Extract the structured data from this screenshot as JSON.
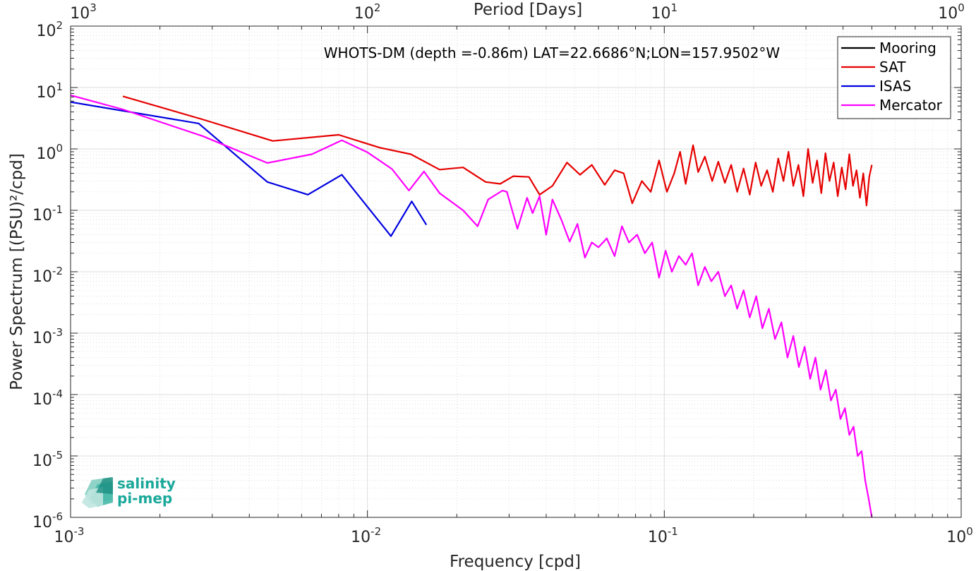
{
  "chart_data": {
    "type": "line",
    "title": "WHOTS-DM (depth =-0.86m) LAT=22.6686°N;LON=157.9502°W",
    "xlabel": "Frequency [cpd]",
    "ylabel": "Power Spectrum [(PSU)²/cpd]",
    "x2label": "Period [Days]",
    "xscale": "log",
    "yscale": "log",
    "xlim": [
      0.001,
      1
    ],
    "ylim": [
      1e-06,
      100
    ],
    "grid": true,
    "legend_placement": "top-right",
    "x_ticks": [
      {
        "base": "10",
        "exp": "-3"
      },
      {
        "base": "10",
        "exp": "-2"
      },
      {
        "base": "10",
        "exp": "-1"
      },
      {
        "base": "10",
        "exp": "0"
      }
    ],
    "x2_ticks": [
      {
        "base": "10",
        "exp": "3"
      },
      {
        "base": "10",
        "exp": "2"
      },
      {
        "base": "10",
        "exp": "1"
      },
      {
        "base": "10",
        "exp": "0"
      }
    ],
    "y_ticks": [
      {
        "base": "10",
        "exp": "-6"
      },
      {
        "base": "10",
        "exp": "-5"
      },
      {
        "base": "10",
        "exp": "-4"
      },
      {
        "base": "10",
        "exp": "-3"
      },
      {
        "base": "10",
        "exp": "-2"
      },
      {
        "base": "10",
        "exp": "-1"
      },
      {
        "base": "10",
        "exp": "0"
      },
      {
        "base": "10",
        "exp": "1"
      },
      {
        "base": "10",
        "exp": "2"
      }
    ],
    "series": [
      {
        "name": "Mooring",
        "color": "#000000",
        "x": [],
        "y": []
      },
      {
        "name": "SAT",
        "color": "#e60000",
        "x": [
          0.0015,
          0.0028,
          0.0048,
          0.008,
          0.011,
          0.014,
          0.0175,
          0.021,
          0.025,
          0.028,
          0.031,
          0.035,
          0.038,
          0.042,
          0.047,
          0.052,
          0.057,
          0.063,
          0.068,
          0.073,
          0.078,
          0.084,
          0.09,
          0.096,
          0.102,
          0.108,
          0.113,
          0.118,
          0.125,
          0.13,
          0.137,
          0.145,
          0.152,
          0.16,
          0.168,
          0.176,
          0.185,
          0.194,
          0.203,
          0.212,
          0.222,
          0.232,
          0.242,
          0.252,
          0.262,
          0.272,
          0.283,
          0.294,
          0.305,
          0.316,
          0.327,
          0.338,
          0.349,
          0.36,
          0.372,
          0.384,
          0.396,
          0.408,
          0.42,
          0.432,
          0.444,
          0.456,
          0.468,
          0.48,
          0.49,
          0.5
        ],
        "y": [
          7.2,
          3.0,
          1.35,
          1.7,
          1.05,
          0.82,
          0.46,
          0.5,
          0.29,
          0.27,
          0.36,
          0.35,
          0.18,
          0.25,
          0.6,
          0.38,
          0.55,
          0.26,
          0.45,
          0.4,
          0.13,
          0.3,
          0.2,
          0.65,
          0.2,
          0.4,
          0.9,
          0.27,
          1.15,
          0.42,
          0.75,
          0.3,
          0.62,
          0.28,
          0.55,
          0.2,
          0.48,
          0.18,
          0.6,
          0.25,
          0.45,
          0.2,
          0.7,
          0.3,
          0.9,
          0.25,
          0.55,
          0.17,
          1.0,
          0.28,
          0.65,
          0.19,
          0.85,
          0.3,
          0.6,
          0.17,
          0.5,
          0.22,
          0.82,
          0.25,
          0.45,
          0.16,
          0.4,
          0.12,
          0.35,
          0.55
        ]
      },
      {
        "name": "ISAS",
        "color": "#0000e0",
        "x": [
          0.001,
          0.0027,
          0.0046,
          0.0063,
          0.0082,
          0.012,
          0.0141,
          0.0158
        ],
        "y": [
          5.8,
          2.6,
          0.29,
          0.18,
          0.38,
          0.038,
          0.14,
          0.058
        ]
      },
      {
        "name": "Mercator",
        "color": "#ff00ff",
        "x": [
          0.001,
          0.0015,
          0.0028,
          0.0046,
          0.0065,
          0.0082,
          0.01,
          0.0121,
          0.0138,
          0.0155,
          0.0175,
          0.021,
          0.0235,
          0.0255,
          0.0285,
          0.0295,
          0.032,
          0.0345,
          0.036,
          0.038,
          0.04,
          0.042,
          0.045,
          0.048,
          0.051,
          0.054,
          0.057,
          0.06,
          0.064,
          0.068,
          0.072,
          0.076,
          0.081,
          0.086,
          0.091,
          0.096,
          0.101,
          0.106,
          0.112,
          0.118,
          0.124,
          0.13,
          0.137,
          0.144,
          0.152,
          0.16,
          0.168,
          0.176,
          0.185,
          0.194,
          0.204,
          0.214,
          0.225,
          0.236,
          0.248,
          0.26,
          0.272,
          0.284,
          0.297,
          0.31,
          0.323,
          0.336,
          0.35,
          0.364,
          0.378,
          0.392,
          0.406,
          0.42,
          0.434,
          0.448,
          0.462,
          0.475,
          0.488,
          0.5
        ],
        "y": [
          7.5,
          4.4,
          1.6,
          0.59,
          0.82,
          1.38,
          0.88,
          0.47,
          0.21,
          0.43,
          0.19,
          0.1,
          0.055,
          0.15,
          0.21,
          0.2,
          0.05,
          0.16,
          0.09,
          0.17,
          0.04,
          0.15,
          0.07,
          0.031,
          0.06,
          0.017,
          0.03,
          0.025,
          0.035,
          0.018,
          0.055,
          0.03,
          0.04,
          0.02,
          0.03,
          0.008,
          0.022,
          0.01,
          0.018,
          0.013,
          0.02,
          0.006,
          0.012,
          0.007,
          0.01,
          0.004,
          0.006,
          0.0025,
          0.005,
          0.0018,
          0.004,
          0.0012,
          0.0025,
          0.0008,
          0.0015,
          0.0004,
          0.0009,
          0.00028,
          0.0006,
          0.00018,
          0.0004,
          0.00012,
          0.00025,
          8e-05,
          0.00012,
          4e-05,
          6e-05,
          2.2e-05,
          3e-05,
          1e-05,
          1.2e-05,
          4e-06,
          2e-06,
          1e-06
        ]
      }
    ]
  },
  "logo": {
    "line1": "salinity",
    "line2": "pi-mep"
  }
}
